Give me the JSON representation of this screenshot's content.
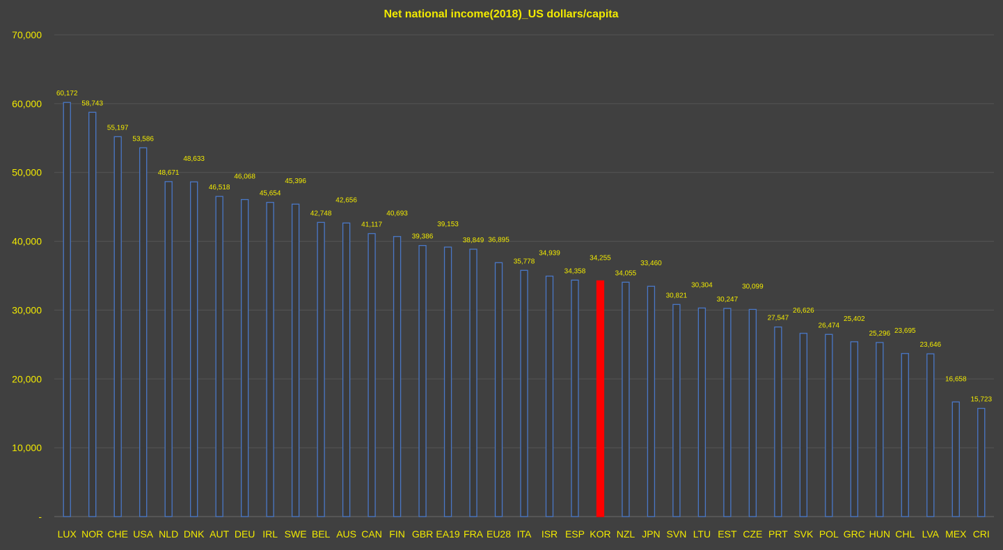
{
  "chart_data": {
    "type": "bar",
    "title": "Net national income(2018)_US dollars/capita",
    "xlabel": "",
    "ylabel": "",
    "ylim": [
      0,
      70000
    ],
    "yticks": [
      0,
      10000,
      20000,
      30000,
      40000,
      50000,
      60000,
      70000
    ],
    "ytick_labels": [
      "-",
      "10,000",
      "20,000",
      "30,000",
      "40,000",
      "50,000",
      "60,000",
      "70,000"
    ],
    "grid": true,
    "legend": "none",
    "categories": [
      "LUX",
      "NOR",
      "CHE",
      "USA",
      "NLD",
      "DNK",
      "AUT",
      "DEU",
      "IRL",
      "SWE",
      "BEL",
      "AUS",
      "CAN",
      "FIN",
      "GBR",
      "EA19",
      "FRA",
      "EU28",
      "ITA",
      "ISR",
      "ESP",
      "KOR",
      "NZL",
      "JPN",
      "SVN",
      "LTU",
      "EST",
      "CZE",
      "PRT",
      "SVK",
      "POL",
      "GRC",
      "HUN",
      "CHL",
      "LVA",
      "MEX",
      "CRI"
    ],
    "values": [
      60172,
      58743,
      55197,
      53586,
      48671,
      48633,
      46518,
      46068,
      45654,
      45396,
      42748,
      42656,
      41117,
      40693,
      39386,
      39153,
      38849,
      36895,
      35778,
      34939,
      34358,
      34255,
      34055,
      33460,
      30821,
      30304,
      30247,
      30099,
      27547,
      26626,
      26474,
      25402,
      25296,
      23695,
      23646,
      16658,
      15723
    ],
    "data_labels": [
      "60,172",
      "58,743",
      "55,197",
      "53,586",
      "48,671",
      "48,633",
      "46,518",
      "46,068",
      "45,654",
      "45,396",
      "42,748",
      "42,656",
      "41,117",
      "40,693",
      "39,386",
      "39,153",
      "38,849",
      "36,895",
      "35,778",
      "34,939",
      "34,358",
      "34,255",
      "34,055",
      "33,460",
      "30,821",
      "30,304",
      "30,247",
      "30,099",
      "27,547",
      "26,626",
      "26,474",
      "25,402",
      "25,296",
      "23,695",
      "23,646",
      "16,658",
      "15,723"
    ],
    "highlight": "KOR",
    "colors": {
      "background": "#404040",
      "bar_fill": "#3a3a3a",
      "bar_stroke": "#4a78c8",
      "highlight_fill": "#ff0000",
      "text": "#f2ea00",
      "grid": "#555555"
    }
  }
}
